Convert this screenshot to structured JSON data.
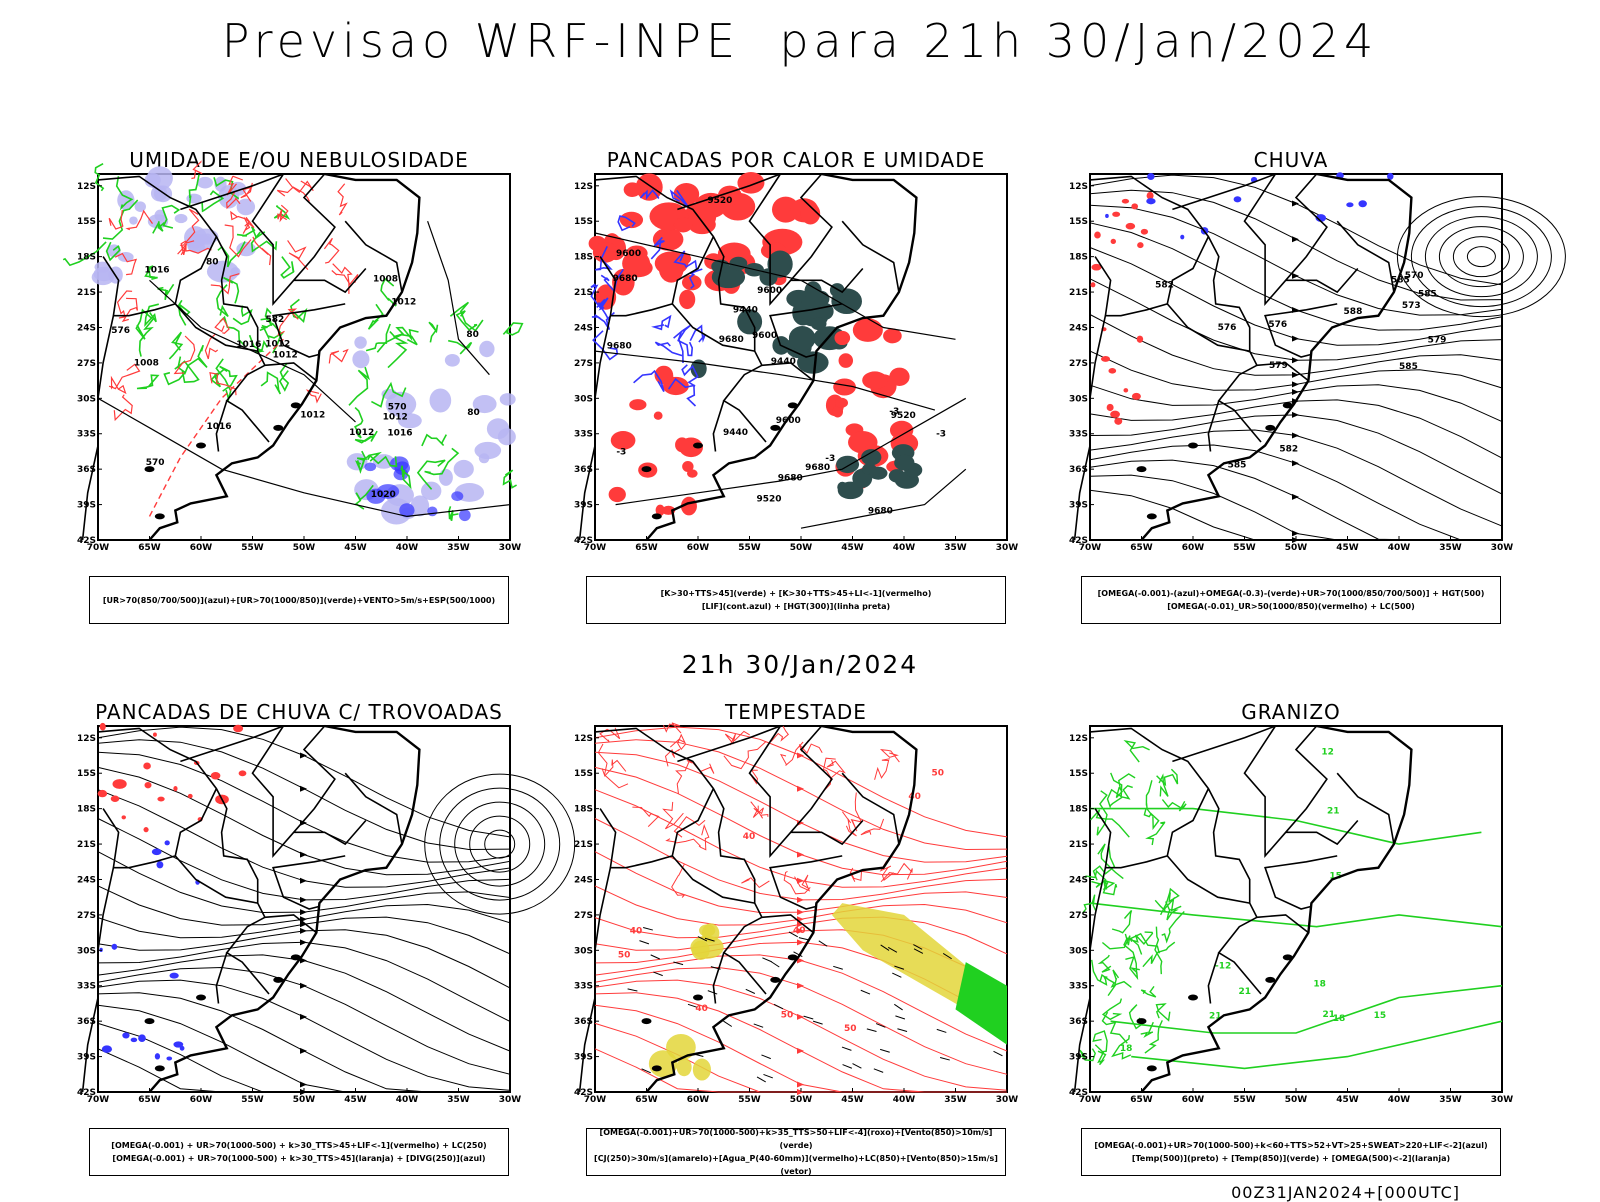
{
  "header": {
    "title": "Previsao WRF-INPE  para 21h 30/Jan/2024"
  },
  "mid_title": "21h 30/Jan/2024",
  "footer": "00Z31JAN2024+[000UTC]",
  "colors": {
    "green": "#20d020",
    "red": "#ff3b3b",
    "blue": "#3535ff",
    "lavender": "#b7b5f2",
    "darkteal": "#2e4d4d",
    "yellow": "#e3d63a",
    "black": "#000000"
  },
  "axes": {
    "lat_labels": [
      "12S",
      "15S",
      "18S",
      "21S",
      "24S",
      "27S",
      "30S",
      "33S",
      "36S",
      "39S",
      "42S"
    ],
    "lon_labels": [
      "70W",
      "65W",
      "60W",
      "55W",
      "50W",
      "45W",
      "40W",
      "35W",
      "30W"
    ]
  },
  "panels": [
    {
      "title": "UMIDADE E/OU NEBULOSIDADE",
      "legend": [
        "[UR>70(850/700/500)](azul)+[UR>70(1000/850)](verde)+VENTO>5m/s+ESP(500/1000)"
      ],
      "labels": [
        "1016",
        "1016",
        "1012",
        "1012",
        "1008",
        "1012",
        "1012",
        "1016",
        "1012",
        "1008",
        "1012",
        "1020",
        "1016",
        "570",
        "576",
        "570",
        "582",
        "80",
        "80",
        "80"
      ]
    },
    {
      "title": "PANCADAS POR CALOR E UMIDADE",
      "legend": [
        "[K>30+TTS>45](verde) + [K>30+TTS>45+LI<-1](vermelho)",
        "[LIF](cont.azul) + [HGT(300)](linha preta)"
      ],
      "labels": [
        "9680",
        "9680",
        "9680",
        "9680",
        "9680",
        "9680",
        "9600",
        "9600",
        "9600",
        "9600",
        "9520",
        "9520",
        "9520",
        "9440",
        "9440",
        "9440",
        "-3",
        "-3",
        "-3",
        "-3"
      ]
    },
    {
      "title": "CHUVA",
      "legend": [
        "[OMEGA(-0.001)-(azul)+OMEGA(-0.3)-(verde)+UR>70(1000/850/700/500)] + HGT(500)",
        "[OMEGA(-0.01)_UR>50(1000/850)(vermelho) + LC(500)"
      ],
      "labels": [
        "588",
        "585",
        "585",
        "585",
        "582",
        "579",
        "576",
        "573",
        "570",
        "585",
        "582",
        "579",
        "576"
      ]
    },
    {
      "title": "PANCADAS DE CHUVA C/ TROVOADAS",
      "legend": [
        "[OMEGA(-0.001) + UR>70(1000-500) + k>30_TTS>45+LIF<-1](vermelho) + LC(250)",
        "[OMEGA(-0.001) + UR>70(1000-500) + k>30_TTS>45](laranja) + [DIVG(250)](azul)"
      ],
      "labels": []
    },
    {
      "title": "TEMPESTADE",
      "legend": [
        "[OMEGA(-0.001)+UR>70(1000-500)+k>35_TTS>50+LIF<-4](roxo)+[Vento(850)>10m/s](verde)",
        "[CJ(250)>30m/s](amarelo)+[Agua_P(40-60mm)](vermelho)+LC(850)+[Vento(850)>15m/s](vetor)"
      ],
      "labels": [
        "50",
        "50",
        "50",
        "40",
        "40",
        "40",
        "40",
        "50",
        "40"
      ]
    },
    {
      "title": "GRANIZO",
      "legend": [
        "[OMEGA(-0.001)+UR>70(1000-500)+k<60+TTS>52+VT>25+SWEAT>220+LIF<-2](azul)",
        "[Temp(500)](preto) + [Temp(850)](verde) + [OMEGA(500)<-2](laranja)"
      ],
      "labels": [
        "21",
        "21",
        "21",
        "18",
        "18",
        "15",
        "15",
        "12",
        "-12",
        "21",
        "18"
      ]
    }
  ]
}
